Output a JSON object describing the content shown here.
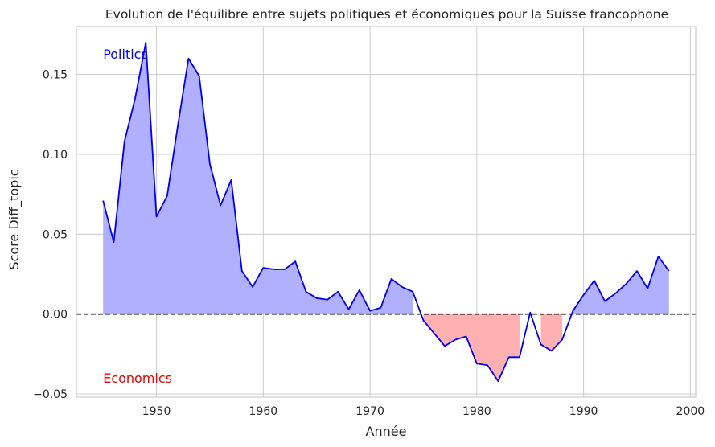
{
  "chart_data": {
    "type": "area",
    "title": "Evolution de l'équilibre entre sujets politiques et économiques pour la Suisse francophone",
    "xlabel": "Année",
    "ylabel": "Score Diff_topic",
    "xlim": [
      1942.5,
      2000.5
    ],
    "ylim": [
      -0.052,
      0.18
    ],
    "xticks": [
      1950,
      1960,
      1970,
      1980,
      1990,
      2000
    ],
    "yticks": [
      -0.05,
      0.0,
      0.05,
      0.1,
      0.15
    ],
    "ytick_labels": [
      "−0.05",
      "0.00",
      "0.05",
      "0.10",
      "0.15"
    ],
    "grid": true,
    "reference_line": {
      "y": 0,
      "style": "dashed",
      "color": "#000000"
    },
    "series": [
      {
        "line_color": "#0000ee",
        "fill_positive_color": "#b0b0ff",
        "fill_negative_color": "#ffb0b0",
        "x": [
          1945,
          1946,
          1947,
          1948,
          1949,
          1950,
          1951,
          1952,
          1953,
          1954,
          1955,
          1956,
          1957,
          1958,
          1959,
          1960,
          1961,
          1962,
          1963,
          1964,
          1965,
          1966,
          1967,
          1968,
          1969,
          1970,
          1971,
          1972,
          1973,
          1974,
          1975,
          1976,
          1977,
          1978,
          1979,
          1980,
          1981,
          1982,
          1983,
          1984,
          1985,
          1986,
          1987,
          1988,
          1989,
          1990,
          1991,
          1992,
          1993,
          1994,
          1995,
          1996,
          1997,
          1998
        ],
        "y": [
          0.071,
          0.045,
          0.108,
          0.135,
          0.17,
          0.061,
          0.074,
          0.118,
          0.16,
          0.149,
          0.094,
          0.068,
          0.084,
          0.027,
          0.017,
          0.029,
          0.028,
          0.028,
          0.033,
          0.014,
          0.01,
          0.009,
          0.014,
          0.003,
          0.015,
          0.002,
          0.004,
          0.022,
          0.017,
          0.014,
          -0.004,
          -0.012,
          -0.02,
          -0.016,
          -0.014,
          -0.031,
          -0.032,
          -0.042,
          -0.027,
          -0.027,
          0.001,
          -0.019,
          -0.023,
          -0.016,
          0.002,
          0.012,
          0.021,
          0.008,
          0.013,
          0.019,
          0.027,
          0.016,
          0.036,
          0.027
        ]
      }
    ],
    "annotations": [
      {
        "text": "Politics",
        "x": 1945,
        "y": 0.163,
        "color": "#0000ee"
      },
      {
        "text": "Economics",
        "x": 1945,
        "y": -0.04,
        "color": "#ee0000"
      }
    ]
  }
}
